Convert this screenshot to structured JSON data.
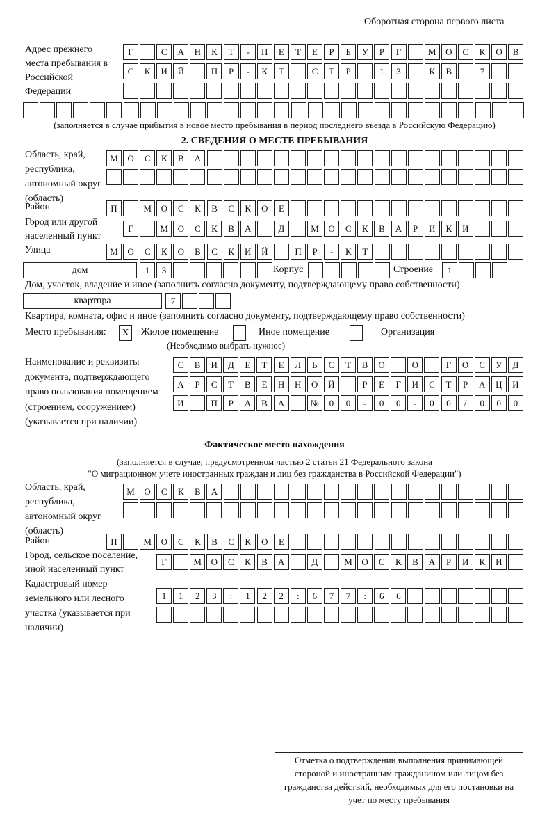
{
  "header": "Оборотная сторона первого листа",
  "prev": {
    "label": "Адрес прежнего места пребывания в Российской Федерации",
    "rows": [
      "Г САНКТ-ПЕТЕРБУРГ МОСКОВ",
      "СКИЙ ПР-КТ СТР 13 КВ 7",
      "",
      ""
    ],
    "note": "(заполняется в случае прибытия в новое место пребывания в период последнего въезда в Российскую Федерацию)"
  },
  "section2": {
    "title": "2. СВЕДЕНИЯ О МЕСТЕ ПРЕБЫВАНИЯ",
    "region_label": "Область, край, республика, автономный округ (область)",
    "region": [
      "МОСКВА",
      ""
    ],
    "district_label": "Район",
    "district": "П МОСКВСКОЕ",
    "city_label": "Город или другой населенный пункт",
    "city": "Г МОСКВА Д МОСКВАРИКИ",
    "street_label": "Улица",
    "street": "МОСКОВСКИЙ ПР-КТ",
    "house_type": "дом",
    "house": "13",
    "korpus_label": "Корпус",
    "korpus": "",
    "building_label": "Строение",
    "building": "1",
    "house_note": "Дом, участок, владение и иное (заполнить согласно документу, подтверждающему право собственности)",
    "flat_type": "квартпра",
    "flat": "7",
    "flat_note": "Квартира, комната, офис и иное (заполнить согласно документу, подтверждающему право собственности)",
    "place_label": "Место пребывания:",
    "opt1_mark": "X",
    "opt1": "Жилое помещение",
    "opt2": "Иное помещение",
    "opt3": "Организация",
    "choose_note": "(Необходимо выбрать нужное)",
    "doc_label": "Наименование и реквизиты документа, подтверждающего право пользования помещением (строением, сооружением) (указывается при наличии)",
    "doc": [
      "СВИДЕТЕЛЬСТВО О ГОСУД",
      "АРСТВЕННОЙ РЕГИСТРАЦИ",
      "И ПРАВА №00-00-00/000"
    ]
  },
  "actual": {
    "title": "Фактическое место нахождения",
    "note1": "(заполняется в случае, предусмотренном частью 2 статьи 21 Федерального закона",
    "note2": "\"О миграционном учете иностранных граждан и лиц без гражданства в Российской Федерации\")",
    "region_label": "Область, край, республика, автономный округ (область)",
    "region": [
      "МОСКВА",
      ""
    ],
    "district_label": "Район",
    "district": "П МОСКВСКОЕ",
    "city_label": "Город, сельское поселение, иной населенный пункт",
    "city": "Г МОСКВА Д МОСКВАРИКИ",
    "cadastre_label": "Кадастровый номер земельного или лесного участка (указывается при наличии)",
    "cadastre": [
      "1123:122:677:66",
      ""
    ]
  },
  "stamp_caption": "Отметка о подтверждении выполнения принимающей стороной и иностранным гражданином или лицом без гражданства действий, необходимых для его постановки на учет по месту пребывания"
}
